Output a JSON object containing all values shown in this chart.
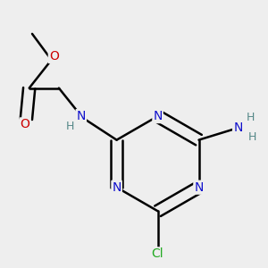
{
  "background_color": "#eeeeee",
  "atom_colors": {
    "N": "#1010cc",
    "O": "#cc0000",
    "Cl": "#22aa22",
    "H": "#558888"
  },
  "bond_color": "#000000",
  "bond_width": 1.8,
  "figsize": [
    3.0,
    3.0
  ],
  "dpi": 100
}
